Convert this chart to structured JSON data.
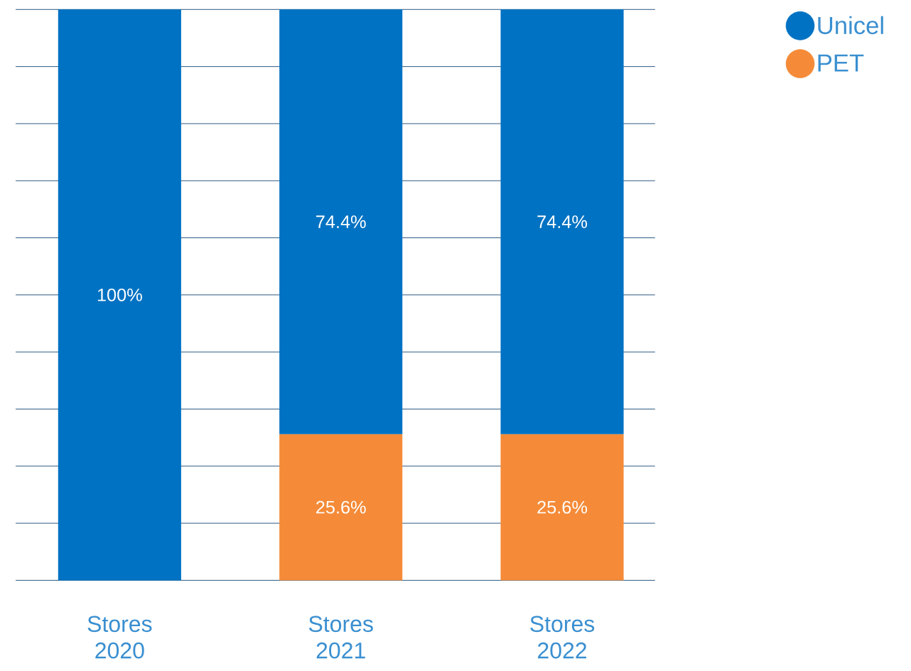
{
  "chart_data": {
    "type": "bar",
    "stacked": true,
    "categories": [
      "Stores 2020",
      "Stores 2021",
      "Stores 2022"
    ],
    "series": [
      {
        "name": "PET",
        "color": "#f58b38",
        "values": [
          null,
          25.6,
          25.6
        ],
        "value_labels": [
          null,
          "25.6%",
          "25.6%"
        ]
      },
      {
        "name": "Unicel",
        "color": "#0072c3",
        "values": [
          100,
          74.4,
          74.4
        ],
        "value_labels": [
          "100%",
          "74.4%",
          "74.4%"
        ]
      }
    ],
    "ylim": [
      0,
      100
    ],
    "yticks": [
      {
        "value": 0,
        "label": null
      },
      {
        "value": 10,
        "label": null
      },
      {
        "value": 20,
        "label": null
      },
      {
        "value": 30,
        "label": null
      },
      {
        "value": 40,
        "label": null
      },
      {
        "value": 50,
        "label": null
      },
      {
        "value": 60,
        "label": null
      },
      {
        "value": 70,
        "label": null
      },
      {
        "value": 80,
        "label": null
      },
      {
        "value": 90,
        "label": null
      },
      {
        "value": 100,
        "label": null
      }
    ],
    "grid": "y",
    "legend": "top right"
  }
}
